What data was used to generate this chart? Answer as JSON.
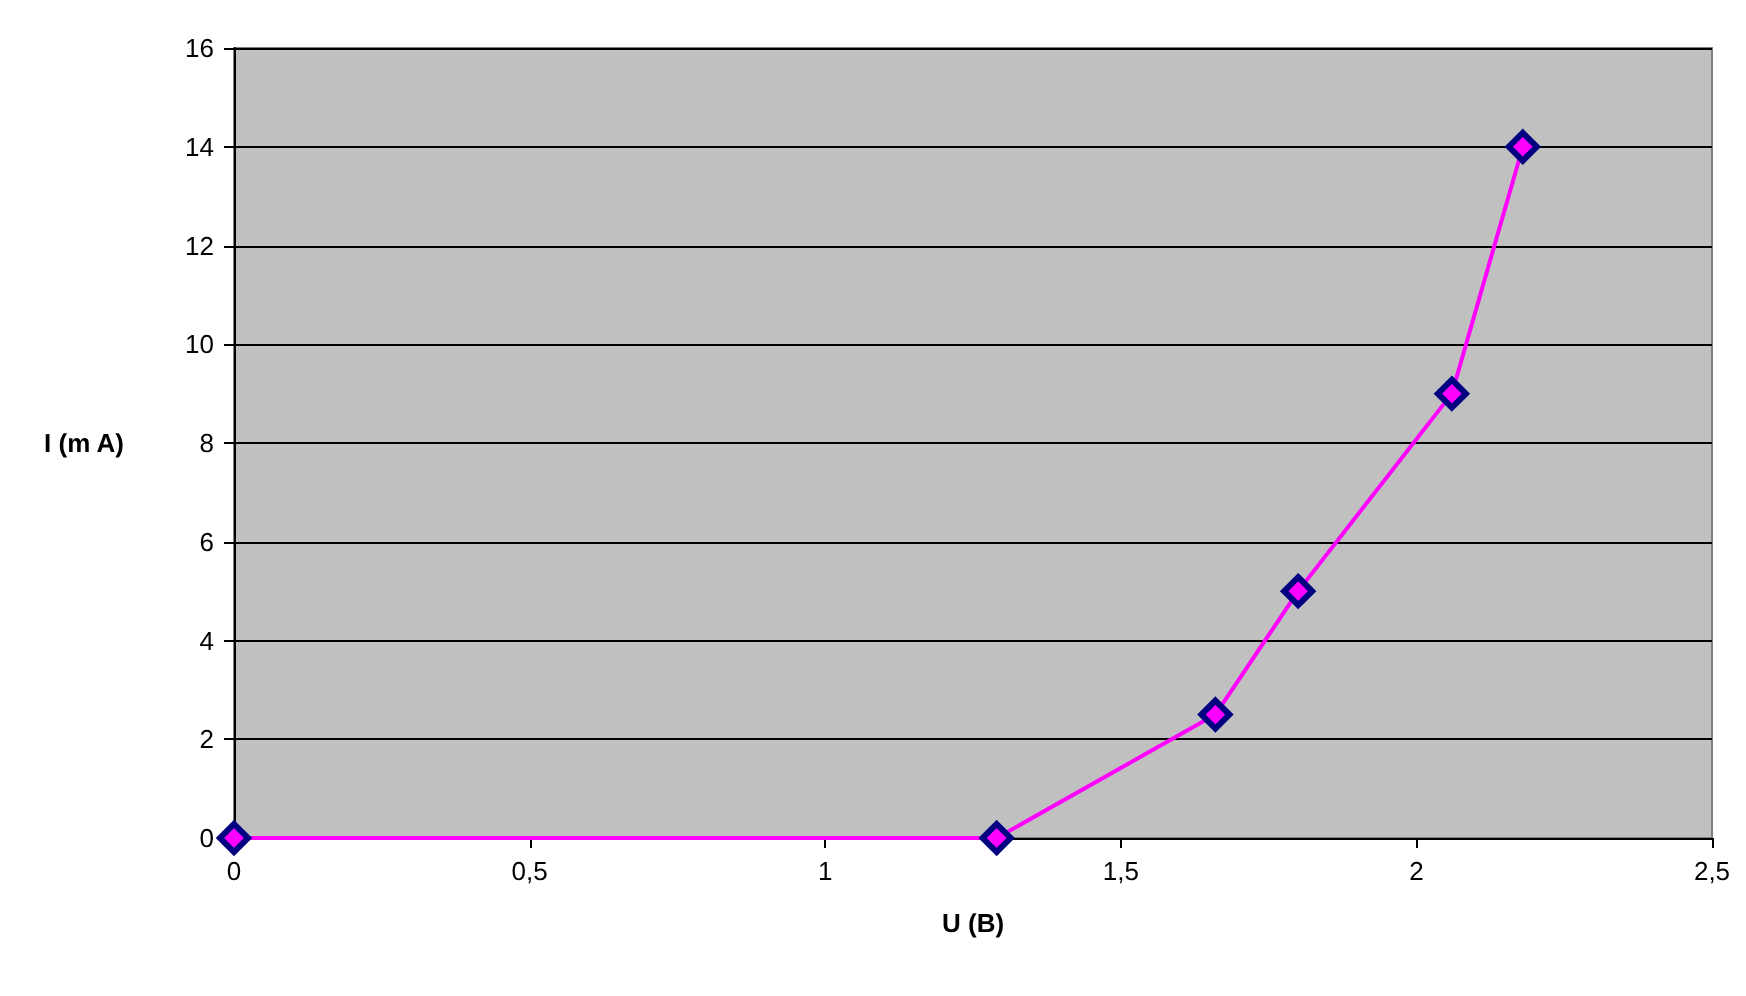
{
  "chart_data": {
    "type": "line",
    "xlabel": "U (B)",
    "ylabel": "I (m A)",
    "series": [
      {
        "color": "#ff00ff",
        "x": [
          0,
          1.29,
          1.66,
          1.8,
          2.06,
          2.18
        ],
        "values": [
          0,
          0,
          2.5,
          5,
          9,
          14
        ]
      }
    ],
    "xlim": [
      0,
      2.5
    ],
    "xticks": [
      0,
      {
        "value": 0.5,
        "label": "0,5"
      },
      1,
      {
        "value": 1.5,
        "label": "1,5"
      },
      2,
      {
        "value": 2.5,
        "label": "2,5"
      }
    ],
    "ylim": [
      0,
      16
    ],
    "yticks": [
      0,
      2,
      4,
      6,
      8,
      10,
      12,
      14,
      16
    ],
    "grid": "y",
    "marker": "diamond",
    "line_style": "solid"
  }
}
